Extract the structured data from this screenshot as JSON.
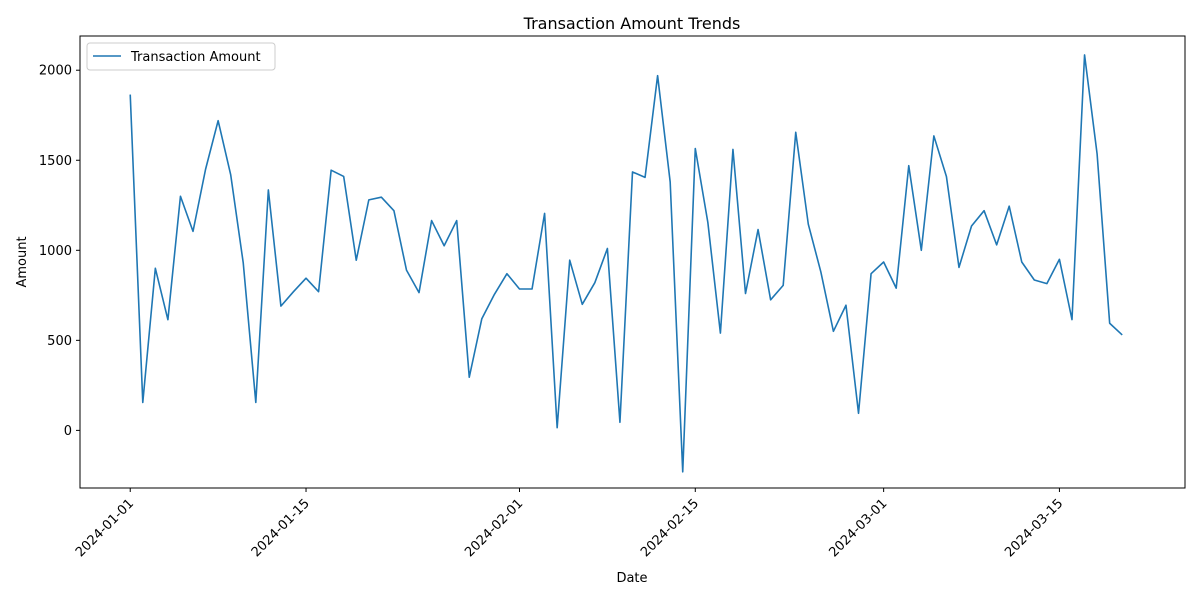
{
  "chart_data": {
    "type": "line",
    "title": "Transaction Amount Trends",
    "xlabel": "Date",
    "ylabel": "Amount",
    "grid": false,
    "legend_position": "top-left",
    "line_color": "#1f77b4",
    "x_start": "2024-01-01",
    "x_ticks": [
      "2024-01-01",
      "2024-01-15",
      "2024-02-01",
      "2024-02-15",
      "2024-03-01",
      "2024-03-15"
    ],
    "y_ticks": [
      0,
      500,
      1000,
      1500,
      2000
    ],
    "ylim": [
      -320,
      2190
    ],
    "xlim": [
      "2023-12-28",
      "2024-03-25"
    ],
    "series": [
      {
        "name": "Transaction Amount",
        "values": [
          1865,
          155,
          900,
          615,
          1300,
          1105,
          1450,
          1720,
          1420,
          930,
          155,
          1335,
          690,
          770,
          845,
          770,
          1445,
          1410,
          945,
          1280,
          1295,
          1220,
          890,
          765,
          1165,
          1025,
          1165,
          295,
          620,
          755,
          870,
          785,
          785,
          1205,
          15,
          945,
          700,
          820,
          1010,
          45,
          1435,
          1405,
          1970,
          1380,
          -230,
          1565,
          1155,
          540,
          1560,
          760,
          1115,
          725,
          805,
          1655,
          1145,
          880,
          550,
          695,
          95,
          870,
          935,
          790,
          1470,
          1000,
          1635,
          1410,
          905,
          1135,
          1220,
          1030,
          1245,
          935,
          835,
          815,
          950,
          615,
          2085,
          1535,
          595,
          530
        ]
      }
    ]
  }
}
